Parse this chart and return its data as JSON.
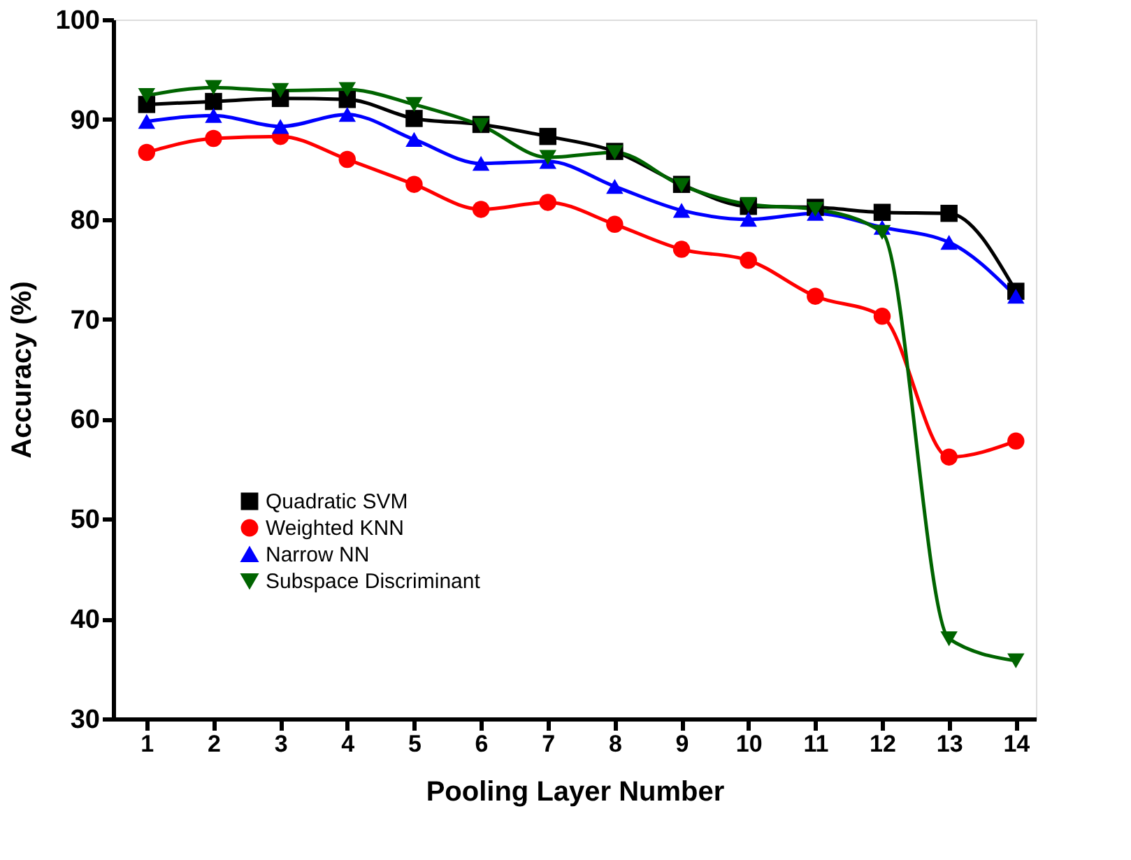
{
  "chart_data": {
    "type": "line",
    "xlabel": "Pooling Layer Number",
    "ylabel": "Accuracy (%)",
    "x": [
      1,
      2,
      3,
      4,
      5,
      6,
      7,
      8,
      9,
      10,
      11,
      12,
      13,
      14
    ],
    "xlim": [
      0.5,
      14.3
    ],
    "xticks": [
      1,
      2,
      3,
      4,
      5,
      6,
      7,
      8,
      9,
      10,
      11,
      12,
      13,
      14
    ],
    "ylim": [
      30,
      100
    ],
    "yticks": [
      30,
      40,
      50,
      60,
      70,
      80,
      90,
      100
    ],
    "grid": false,
    "legend": "bottom left",
    "line_style": "solid",
    "series": [
      {
        "name": "Quadratic SVM",
        "color": "#000000",
        "marker": "square",
        "values": [
          91.5,
          91.8,
          92.1,
          92.0,
          90.1,
          89.5,
          88.3,
          86.8,
          83.5,
          81.3,
          81.2,
          80.7,
          80.6,
          72.8
        ]
      },
      {
        "name": "Weighted KNN",
        "color": "#ff0000",
        "marker": "circle",
        "values": [
          86.7,
          88.1,
          88.3,
          86.0,
          83.5,
          81.0,
          81.7,
          79.5,
          77.0,
          75.9,
          72.3,
          70.3,
          56.2,
          57.8
        ]
      },
      {
        "name": "Narrow NN",
        "color": "#0000ff",
        "marker": "triangle",
        "values": [
          89.8,
          90.4,
          89.3,
          90.5,
          88.0,
          85.6,
          85.8,
          83.3,
          80.9,
          80.0,
          80.6,
          79.2,
          77.7,
          72.3
        ]
      },
      {
        "name": "Subspace Discriminant",
        "color": "#006400",
        "marker": "triangle-down",
        "values": [
          92.4,
          93.2,
          92.9,
          93.0,
          91.5,
          89.4,
          86.2,
          86.7,
          83.4,
          81.5,
          81.0,
          78.7,
          38.0,
          35.8
        ]
      }
    ]
  }
}
